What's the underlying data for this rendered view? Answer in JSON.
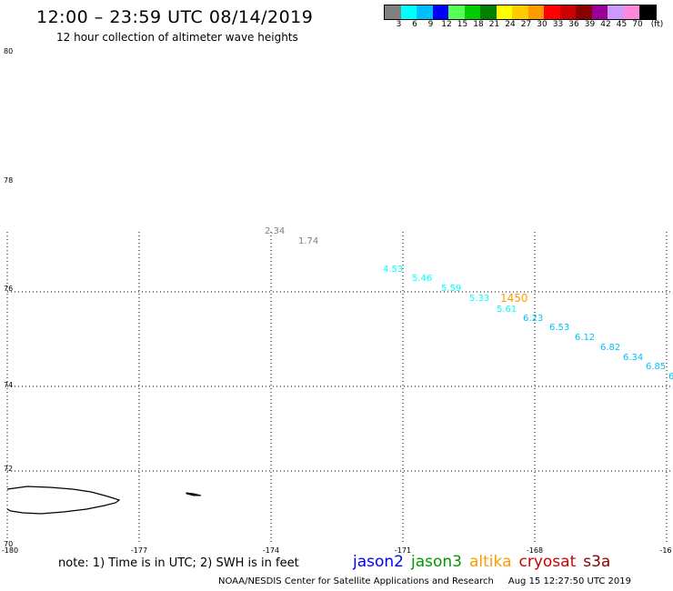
{
  "header": {
    "title": "12:00 – 23:59 UTC 08/14/2019",
    "subtitle": "12 hour collection of altimeter wave heights"
  },
  "colorbar": {
    "colors": [
      "#808080",
      "#00ffff",
      "#00bfff",
      "#0000ff",
      "#55ff55",
      "#00cc00",
      "#008000",
      "#ffff00",
      "#ffcc00",
      "#ff9900",
      "#ff0000",
      "#cc0000",
      "#8b0000",
      "#990099",
      "#cc99ff",
      "#ff88dd",
      "#000000"
    ],
    "labels": [
      "3",
      "6",
      "9",
      "12",
      "15",
      "18",
      "21",
      "24",
      "27",
      "30",
      "33",
      "36",
      "39",
      "42",
      "45",
      "70",
      "(ft)"
    ]
  },
  "map": {
    "lat_labels": [
      "80",
      "78",
      "76",
      "74",
      "72",
      "70"
    ],
    "lon_labels": [
      "-180",
      "-177",
      "-174",
      "-171",
      "-168",
      "-16"
    ],
    "observations": [
      {
        "text": "2.34",
        "color": "#808080"
      },
      {
        "text": "1.74",
        "color": "#808080"
      },
      {
        "text": "4.53",
        "color": "#00ffff"
      },
      {
        "text": "5.46",
        "color": "#00ffff"
      },
      {
        "text": "5.59",
        "color": "#00ffff"
      },
      {
        "text": "5.33",
        "color": "#00ffff"
      },
      {
        "text": "1450",
        "color": "#ff9900"
      },
      {
        "text": "5.61",
        "color": "#00ffff"
      },
      {
        "text": "6.23",
        "color": "#00bfff"
      },
      {
        "text": "6.53",
        "color": "#00bfff"
      },
      {
        "text": "6.12",
        "color": "#00bfff"
      },
      {
        "text": "6.82",
        "color": "#00bfff"
      },
      {
        "text": "6.34",
        "color": "#00bfff"
      },
      {
        "text": "6.85",
        "color": "#00bfff"
      },
      {
        "text": "6",
        "color": "#00bfff"
      }
    ]
  },
  "footer": {
    "note": "note: 1) Time is in UTC; 2) SWH is in feet",
    "satellites": [
      {
        "name": "jason2",
        "color": "#0000ff"
      },
      {
        "name": "jason3",
        "color": "#009900"
      },
      {
        "name": "altika",
        "color": "#ff9900"
      },
      {
        "name": "cryosat",
        "color": "#cc0000"
      },
      {
        "name": "s3a",
        "color": "#880000"
      }
    ],
    "credit": "NOAA/NESDIS Center for Satellite Applications and Research",
    "timestamp": "Aug 15 12:27:50 UTC 2019"
  }
}
